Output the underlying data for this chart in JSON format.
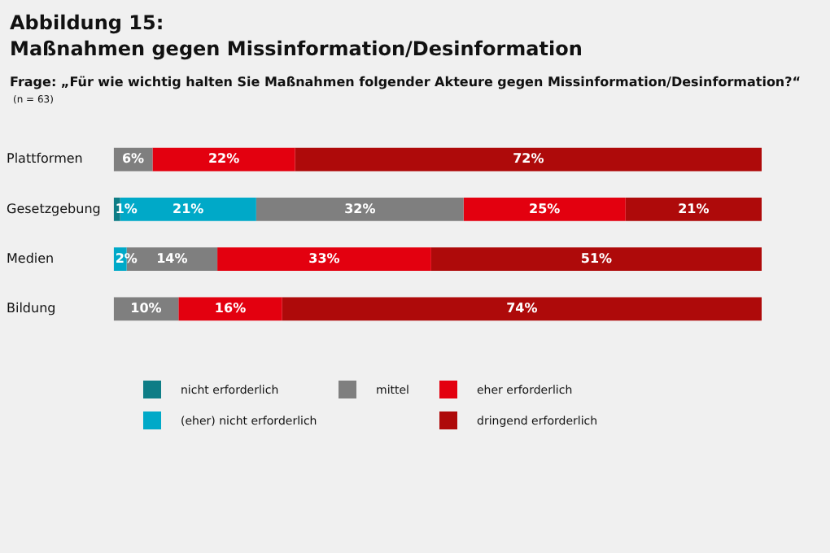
{
  "chart_data": {
    "type": "bar",
    "orientation": "horizontal",
    "stacked": true,
    "title": "Abbildung 15:\nMaßnahmen gegen Missinformation/Desinformation",
    "subtitle": "Frage: „Für wie wichtig halten Sie Maßnahmen folgender Akteure gegen Missinformation/Desinformation?“",
    "annotations": [
      "(n = 63)"
    ],
    "categories": [
      "Plattformen",
      "Gesetzgebung",
      "Medien",
      "Bildung"
    ],
    "series": [
      {
        "name": "nicht erforderlich",
        "color": "#0e7d86",
        "values": [
          null,
          1,
          null,
          null
        ],
        "value_labels": [
          null,
          "1%",
          null,
          null
        ]
      },
      {
        "name": "(eher) nicht erforderlich",
        "color": "#00a9c8",
        "values": [
          null,
          21,
          2,
          null
        ],
        "value_labels": [
          null,
          "21%",
          "2%",
          null
        ]
      },
      {
        "name": "mittel",
        "color": "#7f7f7f",
        "values": [
          6,
          32,
          14,
          10
        ],
        "value_labels": [
          "6%",
          "32%",
          "14%",
          "10%"
        ]
      },
      {
        "name": "eher erforderlich",
        "color": "#e3000f",
        "values": [
          22,
          25,
          33,
          16
        ],
        "value_labels": [
          "22%",
          "25%",
          "33%",
          "16%"
        ]
      },
      {
        "name": "dringend erforderlich",
        "color": "#ae0a0a",
        "values": [
          72,
          21,
          51,
          74
        ],
        "value_labels": [
          "72%",
          "21%",
          "51%",
          "74%"
        ]
      }
    ],
    "xlim": [
      0,
      100
    ],
    "tick_labels": "y",
    "grid": false,
    "legend": "bottom"
  }
}
